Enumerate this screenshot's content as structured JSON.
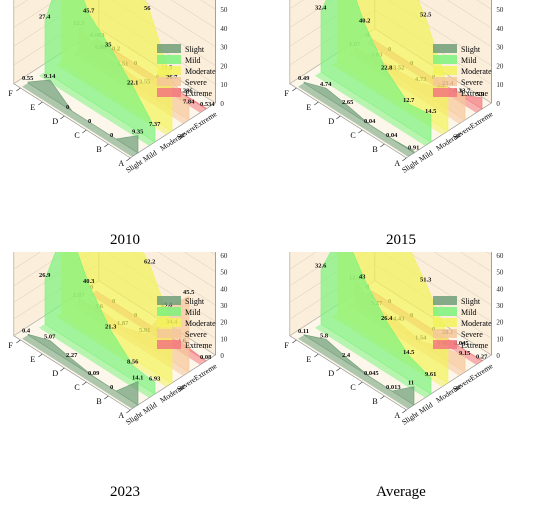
{
  "legend": [
    "Slight",
    "Mild",
    "Moderate",
    "Severe",
    "Extreme"
  ],
  "colors": {
    "Slight": "#6e9e78",
    "Mild": "#7df27d",
    "Moderate": "#f2f25a",
    "Severe": "#f5c79a",
    "Extreme": "#f2787e",
    "wall": "#fbeedb",
    "floor": "#fdf6ea"
  },
  "chart_data": [
    {
      "type": "area",
      "title": "2010",
      "categories": [
        "A",
        "B",
        "C",
        "D",
        "E",
        "F"
      ],
      "ylim": [
        0,
        80
      ],
      "yticks": [
        0,
        10,
        20,
        30,
        40,
        50,
        60,
        70,
        80
      ],
      "series": [
        {
          "name": "Slight",
          "values": [
            9.35,
            0,
            0,
            0,
            9.14,
            0.55
          ]
        },
        {
          "name": "Mild",
          "values": [
            7.37,
            22.1,
            35,
            45.7,
            70.5,
            27.4
          ]
        },
        {
          "name": "Moderate",
          "values": [
            26.7,
            56,
            77.9,
            74.7,
            62.2,
            44.8
          ]
        },
        {
          "name": "Severe",
          "values": [
            7.84,
            18.5,
            3.55,
            5.51,
            6.88,
            12.3
          ]
        },
        {
          "name": "Extreme",
          "values": [
            0.534,
            0.286,
            0.0,
            0.0,
            0.2,
            0.063
          ]
        }
      ]
    },
    {
      "type": "area",
      "title": "2015",
      "categories": [
        "A",
        "B",
        "C",
        "D",
        "E",
        "F"
      ],
      "ylim": [
        0,
        80
      ],
      "yticks": [
        0,
        10,
        20,
        30,
        40,
        50,
        60,
        70,
        80
      ],
      "series": [
        {
          "name": "Slight",
          "values": [
            0.91,
            0.04,
            0.04,
            2.65,
            4.74,
            0.49
          ]
        },
        {
          "name": "Mild",
          "values": [
            14.5,
            12.7,
            22.8,
            40.2,
            65.5,
            32.4
          ]
        },
        {
          "name": "Moderate",
          "values": [
            23.4,
            52.5,
            72.5,
            82.7,
            72.8,
            47.9
          ]
        },
        {
          "name": "Severe",
          "values": [
            13.7,
            9.1,
            4.73,
            3.52,
            3.03,
            1.07
          ]
        },
        {
          "name": "Extreme",
          "values": [
            5.9,
            0.3,
            0,
            0,
            0,
            0
          ]
        }
      ]
    },
    {
      "type": "area",
      "title": "2023",
      "categories": [
        "A",
        "B",
        "C",
        "D",
        "E",
        "F"
      ],
      "ylim": [
        0,
        90
      ],
      "yticks": [
        0,
        10,
        20,
        30,
        40,
        50,
        60,
        70,
        80,
        90
      ],
      "series": [
        {
          "name": "Slight",
          "values": [
            14.1,
            0,
            0.09,
            2.27,
            5.07,
            0.4
          ]
        },
        {
          "name": "Mild",
          "values": [
            6.93,
            8.56,
            21.3,
            40.3,
            69.3,
            26.9
          ]
        },
        {
          "name": "Moderate",
          "values": [
            34.4,
            62.2,
            79.3,
            72.5,
            48.3,
            46.6
          ]
        },
        {
          "name": "Severe",
          "values": [
            45.5,
            29.8,
            5.91,
            1.87,
            3.6,
            1.87
          ]
        },
        {
          "name": "Extreme",
          "values": [
            0.08,
            1.6,
            0,
            0,
            0,
            0
          ]
        }
      ]
    },
    {
      "type": "area",
      "title": "Average",
      "categories": [
        "A",
        "B",
        "C",
        "D",
        "E",
        "F"
      ],
      "ylim": [
        0,
        90
      ],
      "yticks": [
        0,
        10,
        20,
        30,
        40,
        50,
        60,
        70,
        80,
        90
      ],
      "series": [
        {
          "name": "Slight",
          "values": [
            11,
            0.013,
            0.045,
            2.4,
            5.8,
            0.11
          ]
        },
        {
          "name": "Mild",
          "values": [
            9.61,
            14.5,
            26.4,
            43,
            65.4,
            32.6
          ]
        },
        {
          "name": "Moderate",
          "values": [
            28.1,
            51.3,
            70.9,
            78.9,
            69.3,
            47
          ]
        },
        {
          "name": "Severe",
          "values": [
            9.15,
            6.48,
            1.54,
            4.43,
            5.27,
            12.4
          ]
        },
        {
          "name": "Extreme",
          "values": [
            0.27,
            0.045,
            0,
            0,
            0,
            0
          ]
        }
      ]
    }
  ]
}
